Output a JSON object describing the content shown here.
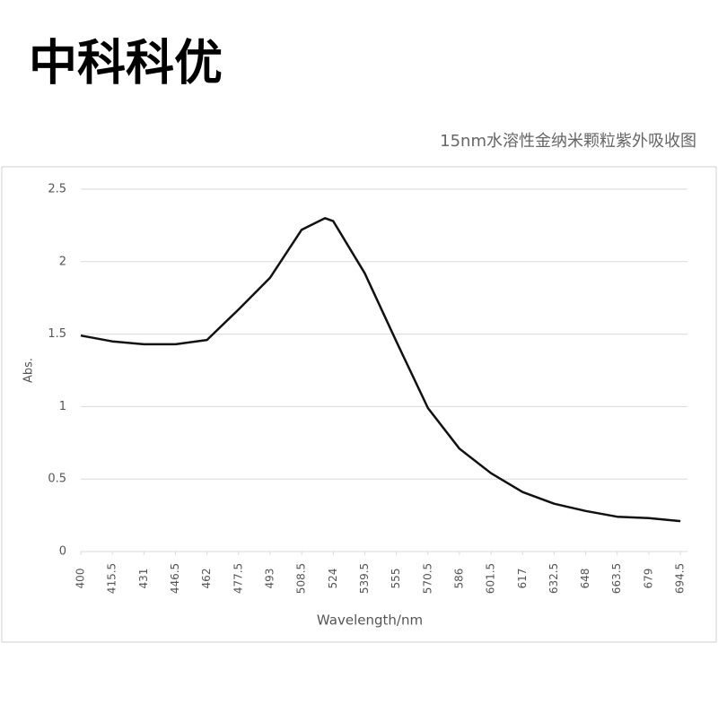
{
  "header": {
    "brand": "中科科优"
  },
  "chart_data": {
    "type": "line",
    "title": "15nm水溶性金纳米颗粒紫外吸收图",
    "x_label": "Wavelength/nm",
    "y_label": "Abs.",
    "x": [
      400,
      415.5,
      431,
      446.5,
      462,
      477.5,
      493,
      508.5,
      520,
      524,
      539.5,
      555,
      570.5,
      586,
      601.5,
      617,
      632.5,
      648,
      663.5,
      679,
      694.5
    ],
    "values": [
      1.49,
      1.45,
      1.43,
      1.43,
      1.46,
      1.67,
      1.89,
      2.22,
      2.3,
      2.28,
      1.92,
      1.45,
      0.99,
      0.71,
      0.54,
      0.41,
      0.33,
      0.28,
      0.24,
      0.23,
      0.21
    ],
    "color": "#111111",
    "xlim": [
      400,
      698
    ],
    "xticks": [
      400,
      415.5,
      431,
      446.5,
      462,
      477.5,
      493,
      508.5,
      524,
      539.5,
      555,
      570.5,
      586,
      601.5,
      617,
      632.5,
      648,
      663.5,
      679,
      694.5
    ],
    "ylim": [
      0,
      2.5
    ],
    "yticks": [
      0,
      0.5,
      1,
      1.5,
      2,
      2.5
    ],
    "grid": true
  }
}
